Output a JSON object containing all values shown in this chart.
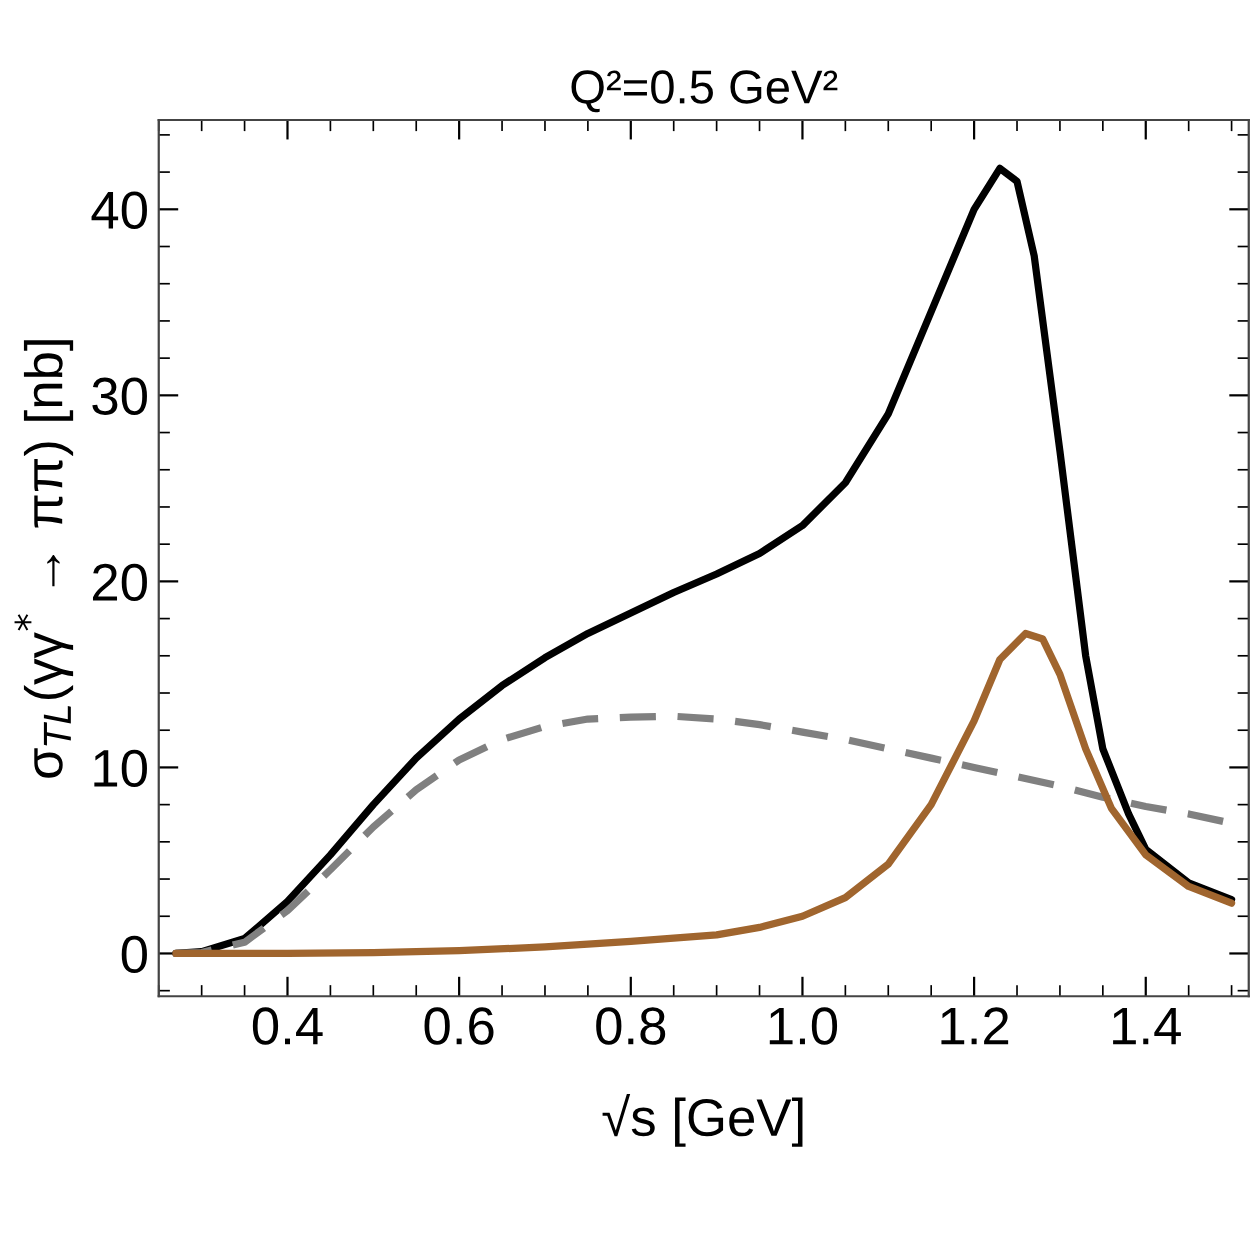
{
  "chart_data": {
    "type": "line",
    "title": "Q²=0.5 GeV²",
    "xlabel": "√s [GeV]",
    "ylabel": "σ$_{TL}$(γγ$^{*}$ → ππ) [nb]",
    "xlim": [
      0.25,
      1.52
    ],
    "ylim": [
      -2.3,
      44.8
    ],
    "xticks": [
      0.4,
      0.6,
      0.8,
      {
        "value": 1.0,
        "label": "1.0"
      },
      1.2,
      1.4
    ],
    "yticks": [
      0,
      10,
      20,
      30,
      40
    ],
    "grid": false,
    "legend": false,
    "marker": "none",
    "series": [
      {
        "color": "#000000",
        "line_style": "solid",
        "x": [
          0.27,
          0.3,
          0.35,
          0.4,
          0.45,
          0.5,
          0.55,
          0.6,
          0.65,
          0.7,
          0.75,
          0.8,
          0.85,
          0.9,
          0.95,
          1.0,
          1.05,
          1.1,
          1.15,
          1.2,
          1.23,
          1.25,
          1.27,
          1.3,
          1.33,
          1.35,
          1.38,
          1.4,
          1.45,
          1.5
        ],
        "values": [
          0,
          0.1,
          0.8,
          2.8,
          5.3,
          8.0,
          10.5,
          12.6,
          14.4,
          15.9,
          17.2,
          18.3,
          19.4,
          20.4,
          21.5,
          23.0,
          25.3,
          29.0,
          34.5,
          40.0,
          42.2,
          41.5,
          37.5,
          27,
          16,
          11,
          7.5,
          5.6,
          3.8,
          2.9
        ]
      },
      {
        "color": "#808080",
        "line_style": "dashed",
        "x": [
          0.27,
          0.3,
          0.35,
          0.4,
          0.45,
          0.5,
          0.55,
          0.6,
          0.65,
          0.7,
          0.75,
          0.8,
          0.85,
          0.9,
          0.95,
          1.0,
          1.05,
          1.1,
          1.15,
          1.2,
          1.25,
          1.3,
          1.35,
          1.4,
          1.45,
          1.5
        ],
        "values": [
          0,
          0.05,
          0.6,
          2.3,
          4.5,
          6.8,
          8.8,
          10.4,
          11.5,
          12.2,
          12.6,
          12.7,
          12.75,
          12.6,
          12.3,
          11.9,
          11.5,
          11.0,
          10.5,
          10.0,
          9.5,
          9.0,
          8.4,
          7.9,
          7.5,
          7.0
        ]
      },
      {
        "color": "#a0652e",
        "line_style": "solid",
        "x": [
          0.27,
          0.4,
          0.5,
          0.6,
          0.7,
          0.8,
          0.9,
          0.95,
          1.0,
          1.05,
          1.1,
          1.15,
          1.2,
          1.23,
          1.26,
          1.28,
          1.3,
          1.33,
          1.36,
          1.4,
          1.45,
          1.5
        ],
        "values": [
          0,
          0,
          0.05,
          0.15,
          0.35,
          0.65,
          1.0,
          1.4,
          2.0,
          3.0,
          4.8,
          8.0,
          12.5,
          15.8,
          17.2,
          16.9,
          15.0,
          11.0,
          7.8,
          5.3,
          3.6,
          2.7
        ]
      }
    ]
  }
}
